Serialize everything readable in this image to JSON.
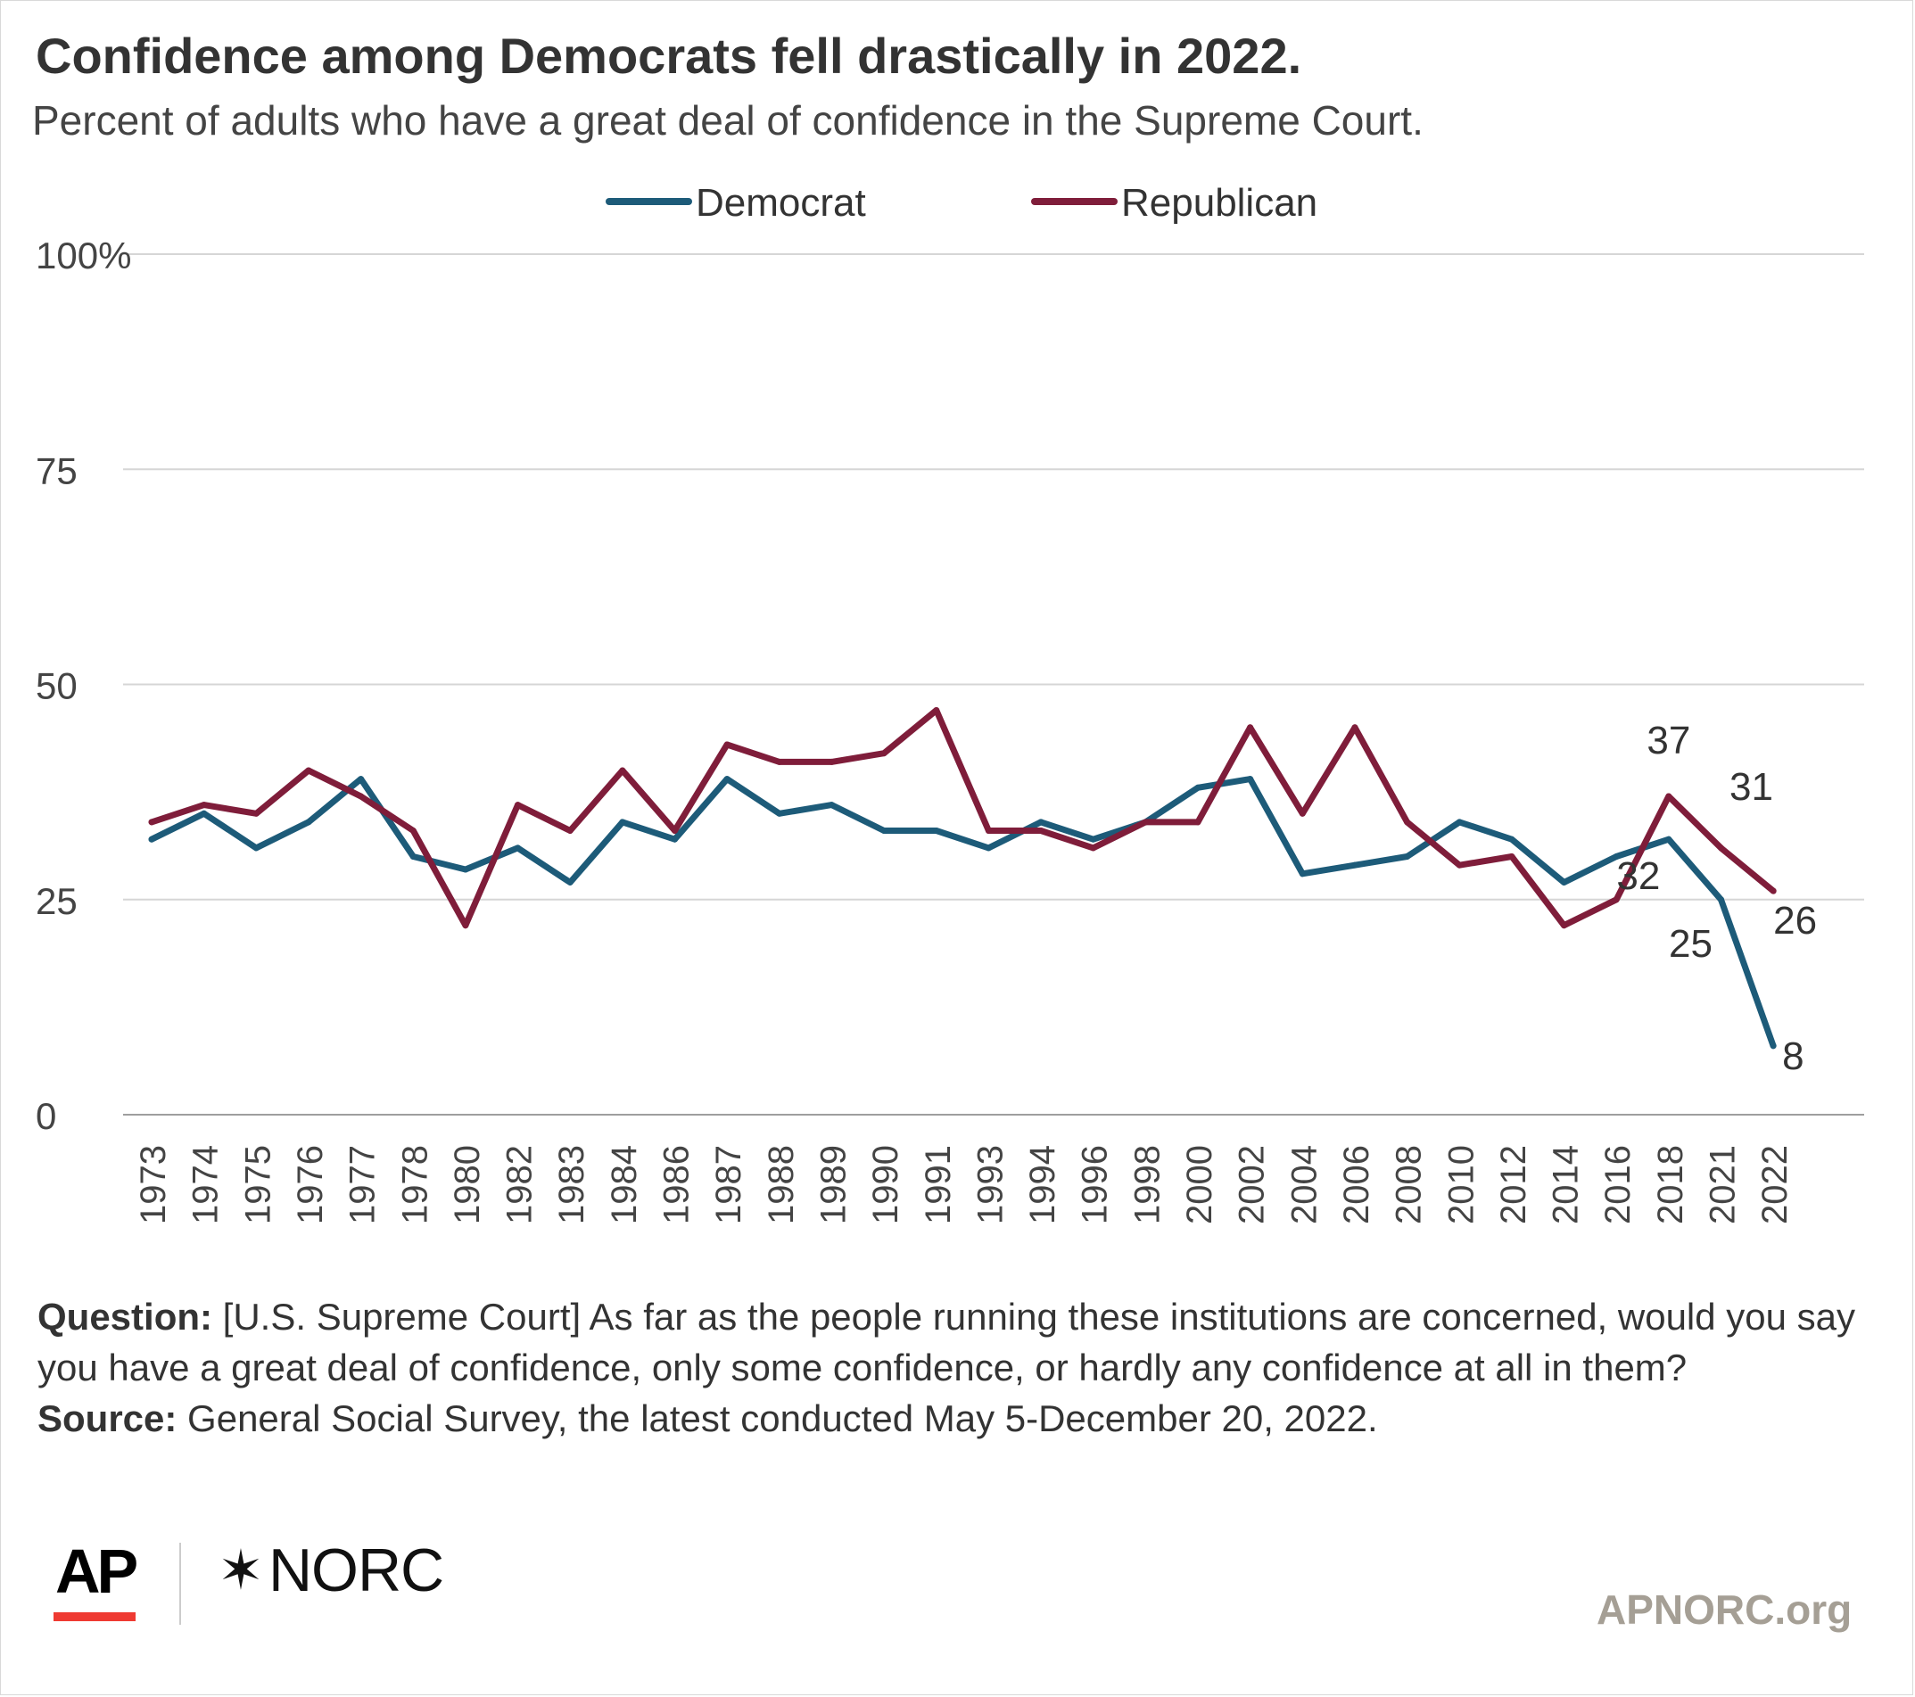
{
  "header": {
    "title": "Confidence among Democrats fell drastically in 2022.",
    "subtitle": "Percent of adults who have a great deal of confidence in the Supreme Court."
  },
  "chart_data": {
    "type": "line",
    "categories": [
      "1973",
      "1974",
      "1975",
      "1976",
      "1977",
      "1978",
      "1980",
      "1982",
      "1983",
      "1984",
      "1986",
      "1987",
      "1988",
      "1989",
      "1990",
      "1991",
      "1993",
      "1994",
      "1996",
      "1998",
      "2000",
      "2002",
      "2004",
      "2006",
      "2008",
      "2010",
      "2012",
      "2014",
      "2016",
      "2018",
      "2021",
      "2022"
    ],
    "series": [
      {
        "name": "Democrat",
        "color": "#1d5b79",
        "values": [
          32,
          35,
          31,
          34,
          39,
          30,
          28.5,
          31,
          27,
          34,
          32,
          39,
          35,
          36,
          33,
          33,
          31,
          34,
          32,
          34,
          38,
          39,
          28,
          29,
          30,
          34,
          32,
          27,
          30,
          32,
          25,
          8
        ]
      },
      {
        "name": "Republican",
        "color": "#7f1d3a",
        "values": [
          34,
          36,
          35,
          40,
          37,
          33,
          22,
          36,
          33,
          40,
          33,
          43,
          41,
          41,
          42,
          47,
          33,
          33,
          31,
          34,
          34,
          45,
          35,
          45,
          34,
          29,
          30,
          22,
          25,
          37,
          31,
          26
        ]
      }
    ],
    "ylim": [
      0,
      100
    ],
    "yticks": [
      0,
      25,
      50,
      75,
      100
    ],
    "ytick_labels": [
      "0",
      "25",
      "50",
      "75",
      "100%"
    ],
    "grid": true,
    "legend_position": "top-center",
    "data_labels": [
      {
        "series": "Republican",
        "category": "2018",
        "text": "37"
      },
      {
        "series": "Republican",
        "category": "2021",
        "text": "31"
      },
      {
        "series": "Republican",
        "category": "2022",
        "text": "26"
      },
      {
        "series": "Democrat",
        "category": "2018",
        "text": "32"
      },
      {
        "series": "Democrat",
        "category": "2021",
        "text": "25"
      },
      {
        "series": "Democrat",
        "category": "2022",
        "text": "8"
      }
    ]
  },
  "notes": {
    "question_label": "Question:",
    "question_text": "[U.S. Supreme Court] As far as the people running these institutions are concerned, would you say you have a great deal of confidence, only some confidence, or hardly any confidence at all in them?",
    "source_label": "Source:",
    "source_text": "General Social Survey, the latest conducted May 5-December 20, 2022."
  },
  "footer": {
    "ap_logo": "AP",
    "norc_star": "✶",
    "norc_logo": "NORC",
    "website": "APNORC.org"
  },
  "colors": {
    "democrat": "#1d5b79",
    "republican": "#7f1d3a",
    "ap_red": "#ef3a32",
    "website": "#a59f95"
  }
}
